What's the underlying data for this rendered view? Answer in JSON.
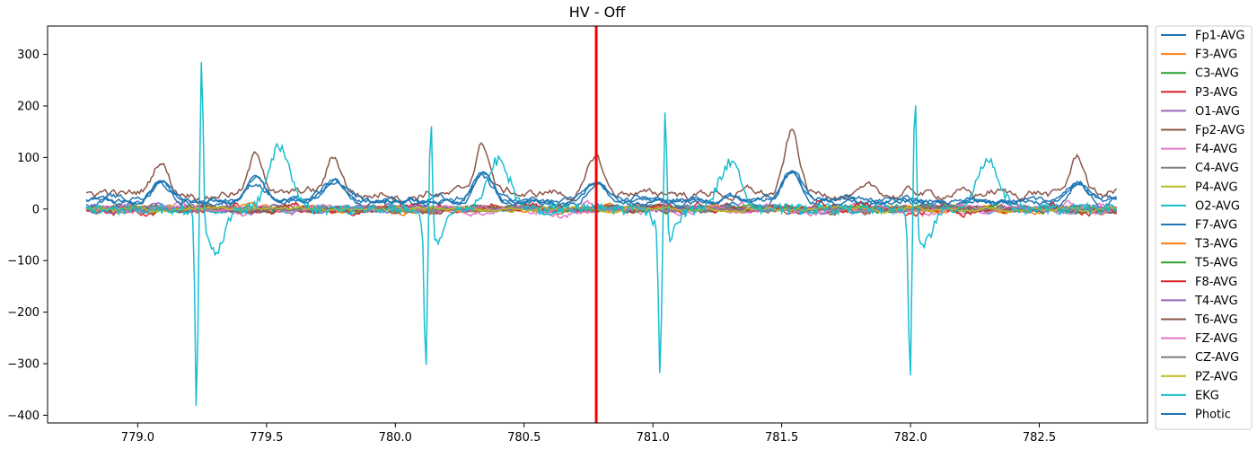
{
  "chart_data": {
    "type": "line",
    "title": "HV - Off",
    "xlabel": "",
    "ylabel": "",
    "xlim": [
      778.65,
      782.92
    ],
    "ylim": [
      -415,
      355
    ],
    "x_ticks": [
      779.0,
      779.5,
      780.0,
      780.5,
      781.0,
      781.5,
      782.0,
      782.5
    ],
    "x_tick_labels": [
      "779.0",
      "779.5",
      "780.0",
      "780.5",
      "781.0",
      "781.5",
      "782.0",
      "782.5"
    ],
    "y_ticks": [
      -400,
      -300,
      -200,
      -100,
      0,
      100,
      200,
      300
    ],
    "y_tick_labels": [
      "−400",
      "−300",
      "−200",
      "−100",
      "0",
      "100",
      "200",
      "300"
    ],
    "grid": false,
    "legend_position": "outside-right",
    "x_start": 778.8,
    "x_end": 782.8,
    "marker_line": {
      "x": 780.78,
      "color": "#ff0000"
    },
    "series": [
      {
        "name": "Fp1-AVG",
        "color": "#1f77b4",
        "amplitude": 8
      },
      {
        "name": "F3-AVG",
        "color": "#ff7f0e",
        "amplitude": 7
      },
      {
        "name": "C3-AVG",
        "color": "#2ca02c",
        "amplitude": 6
      },
      {
        "name": "P3-AVG",
        "color": "#d62728",
        "amplitude": 6
      },
      {
        "name": "O1-AVG",
        "color": "#9467bd",
        "amplitude": 7
      },
      {
        "name": "Fp2-AVG",
        "color": "#8c564b",
        "amplitude": 12
      },
      {
        "name": "F4-AVG",
        "color": "#e377c2",
        "amplitude": 10
      },
      {
        "name": "C4-AVG",
        "color": "#7f7f7f",
        "amplitude": 5
      },
      {
        "name": "P4-AVG",
        "color": "#bcbd22",
        "amplitude": 5
      },
      {
        "name": "O2-AVG",
        "color": "#17becf",
        "amplitude": 7
      },
      {
        "name": "F7-AVG",
        "color": "#1f77b4",
        "amplitude": 10
      },
      {
        "name": "T3-AVG",
        "color": "#ff7f0e",
        "amplitude": 6
      },
      {
        "name": "T5-AVG",
        "color": "#2ca02c",
        "amplitude": 6
      },
      {
        "name": "F8-AVG",
        "color": "#d62728",
        "amplitude": 10
      },
      {
        "name": "T4-AVG",
        "color": "#9467bd",
        "amplitude": 6
      },
      {
        "name": "T6-AVG",
        "color": "#8c564b",
        "amplitude": 8
      },
      {
        "name": "FZ-AVG",
        "color": "#e377c2",
        "amplitude": 7
      },
      {
        "name": "CZ-AVG",
        "color": "#7f7f7f",
        "amplitude": 5
      },
      {
        "name": "PZ-AVG",
        "color": "#bcbd22",
        "amplitude": 5
      },
      {
        "name": "EKG",
        "color": "#17becf",
        "amplitude": 18
      },
      {
        "name": "Photic",
        "color": "#1f77b4",
        "amplitude": 8
      }
    ],
    "ekg_spikes": [
      {
        "x": 779.24,
        "peak": 320,
        "trough": -378
      },
      {
        "x": 780.13,
        "peak": 243,
        "trough": -280
      },
      {
        "x": 781.04,
        "peak": 266,
        "trough": -265
      },
      {
        "x": 782.01,
        "peak": 273,
        "trough": -320
      }
    ],
    "ekg_waves": [
      {
        "x": 779.55,
        "amp": 120
      },
      {
        "x": 780.4,
        "amp": 95
      },
      {
        "x": 781.3,
        "amp": 90
      },
      {
        "x": 782.3,
        "amp": 95
      }
    ],
    "frontal_blinks": [
      {
        "x": 779.09,
        "amp": 90
      },
      {
        "x": 779.46,
        "amp": 100
      },
      {
        "x": 779.76,
        "amp": 95
      },
      {
        "x": 780.34,
        "amp": 130
      },
      {
        "x": 780.78,
        "amp": 90
      },
      {
        "x": 781.54,
        "amp": 150
      },
      {
        "x": 782.65,
        "amp": 90
      }
    ]
  }
}
